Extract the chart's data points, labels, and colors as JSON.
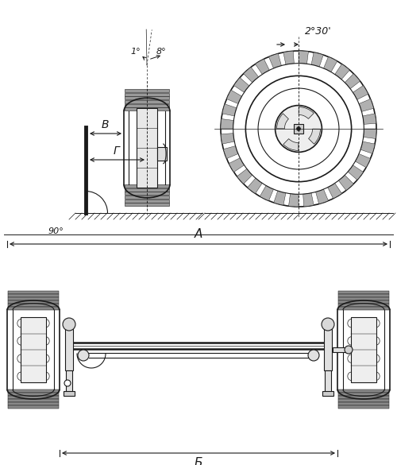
{
  "bg_color": "#ffffff",
  "line_color": "#1a1a1a",
  "label_A": "А",
  "label_B_ru": "Б",
  "label_V": "В",
  "label_G": "Г",
  "angle_1": "1°",
  "angle_8": "8°",
  "angle_90": "90°",
  "angle_230": "2°30'",
  "figsize": [
    5.0,
    5.85
  ],
  "dpi": 100
}
